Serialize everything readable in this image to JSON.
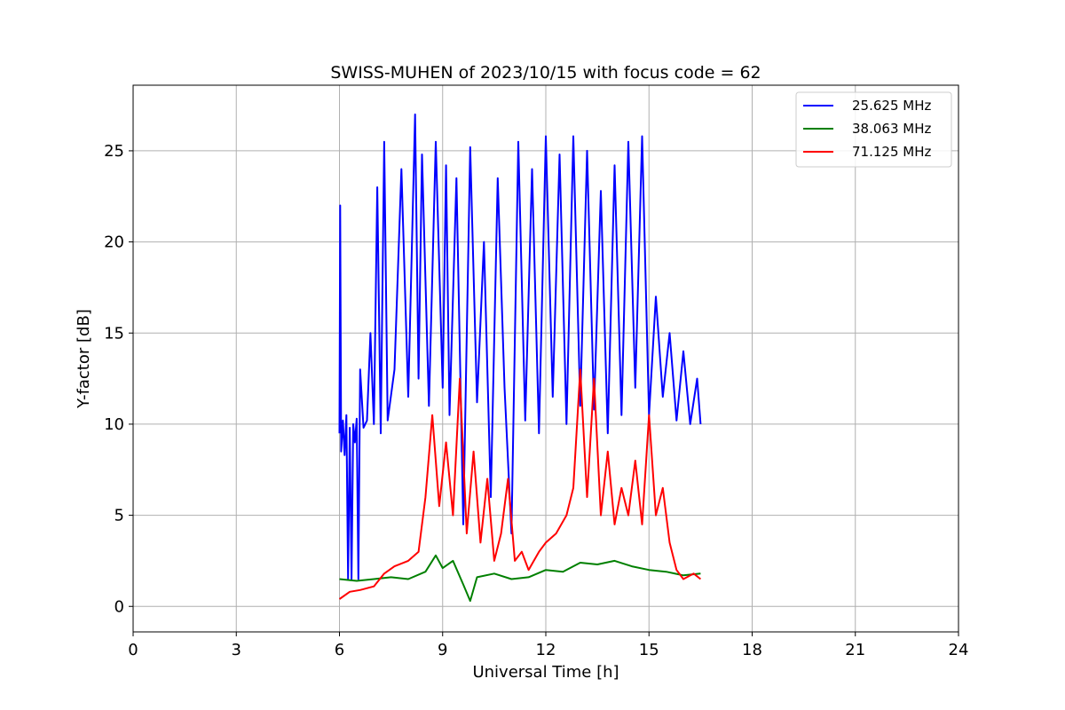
{
  "chart_data": {
    "type": "line",
    "title": "SWISS-MUHEN of 2023/10/15 with focus code = 62",
    "xlabel": "Universal Time [h]",
    "ylabel": "Y-factor [dB]",
    "xlim": [
      0,
      24
    ],
    "ylim": [
      -1.4,
      28.6
    ],
    "xticks": [
      0,
      3,
      6,
      9,
      12,
      15,
      18,
      21,
      24
    ],
    "yticks": [
      0,
      5,
      10,
      15,
      20,
      25
    ],
    "grid": true,
    "legend_position": "top-right",
    "series": [
      {
        "name": "25.625 MHz",
        "color": "#0000ff",
        "x": [
          6.0,
          6.02,
          6.05,
          6.1,
          6.15,
          6.2,
          6.25,
          6.3,
          6.35,
          6.4,
          6.45,
          6.5,
          6.55,
          6.6,
          6.7,
          6.8,
          6.9,
          7.0,
          7.1,
          7.2,
          7.3,
          7.4,
          7.6,
          7.8,
          8.0,
          8.2,
          8.3,
          8.4,
          8.6,
          8.8,
          9.0,
          9.1,
          9.2,
          9.4,
          9.6,
          9.8,
          10.0,
          10.2,
          10.4,
          10.6,
          10.8,
          11.0,
          11.2,
          11.4,
          11.6,
          11.8,
          12.0,
          12.2,
          12.4,
          12.6,
          12.8,
          13.0,
          13.2,
          13.4,
          13.6,
          13.8,
          14.0,
          14.2,
          14.4,
          14.6,
          14.8,
          15.0,
          15.2,
          15.4,
          15.6,
          15.8,
          16.0,
          16.2,
          16.4,
          16.5
        ],
        "y": [
          9.5,
          22.0,
          8.5,
          10.2,
          8.3,
          10.5,
          1.5,
          9.8,
          1.5,
          10.0,
          9.0,
          10.3,
          1.5,
          13.0,
          9.8,
          10.2,
          15.0,
          10.0,
          23.0,
          9.5,
          25.5,
          10.2,
          13.0,
          24.0,
          11.5,
          27.0,
          12.5,
          24.8,
          11.0,
          25.5,
          12.0,
          24.2,
          10.5,
          23.5,
          4.5,
          25.2,
          11.2,
          20.0,
          6.0,
          23.5,
          12.0,
          4.0,
          25.5,
          10.2,
          24.0,
          9.5,
          25.8,
          11.5,
          24.8,
          10.0,
          25.8,
          11.0,
          25.0,
          10.8,
          22.8,
          9.5,
          24.2,
          10.5,
          25.5,
          12.0,
          25.8,
          10.5,
          17.0,
          11.5,
          15.0,
          10.2,
          14.0,
          10.0,
          12.5,
          10.0
        ]
      },
      {
        "name": "38.063 MHz",
        "color": "#008000",
        "x": [
          6.0,
          6.5,
          7.0,
          7.5,
          8.0,
          8.5,
          8.8,
          9.0,
          9.3,
          9.6,
          9.8,
          10.0,
          10.5,
          11.0,
          11.5,
          12.0,
          12.5,
          13.0,
          13.5,
          14.0,
          14.5,
          15.0,
          15.5,
          16.0,
          16.5
        ],
        "y": [
          1.5,
          1.4,
          1.5,
          1.6,
          1.5,
          1.9,
          2.8,
          2.1,
          2.5,
          1.2,
          0.3,
          1.6,
          1.8,
          1.5,
          1.6,
          2.0,
          1.9,
          2.4,
          2.3,
          2.5,
          2.2,
          2.0,
          1.9,
          1.7,
          1.8
        ]
      },
      {
        "name": "71.125 MHz",
        "color": "#ff0000",
        "x": [
          6.0,
          6.3,
          6.6,
          7.0,
          7.3,
          7.6,
          8.0,
          8.3,
          8.5,
          8.7,
          8.9,
          9.1,
          9.3,
          9.5,
          9.7,
          9.9,
          10.1,
          10.3,
          10.5,
          10.7,
          10.9,
          11.1,
          11.3,
          11.5,
          11.8,
          12.0,
          12.3,
          12.6,
          12.8,
          13.0,
          13.2,
          13.4,
          13.6,
          13.8,
          14.0,
          14.2,
          14.4,
          14.6,
          14.8,
          15.0,
          15.2,
          15.4,
          15.6,
          15.8,
          16.0,
          16.3,
          16.5
        ],
        "y": [
          0.4,
          0.8,
          0.9,
          1.1,
          1.8,
          2.2,
          2.5,
          3.0,
          6.0,
          10.5,
          5.5,
          9.0,
          5.0,
          12.5,
          4.0,
          8.5,
          3.5,
          7.0,
          2.5,
          4.0,
          7.0,
          2.5,
          3.0,
          2.0,
          3.0,
          3.5,
          4.0,
          5.0,
          6.5,
          13.0,
          6.0,
          12.5,
          5.0,
          8.5,
          4.5,
          6.5,
          5.0,
          8.0,
          4.5,
          10.5,
          5.0,
          6.5,
          3.5,
          2.0,
          1.5,
          1.8,
          1.5
        ]
      }
    ]
  }
}
